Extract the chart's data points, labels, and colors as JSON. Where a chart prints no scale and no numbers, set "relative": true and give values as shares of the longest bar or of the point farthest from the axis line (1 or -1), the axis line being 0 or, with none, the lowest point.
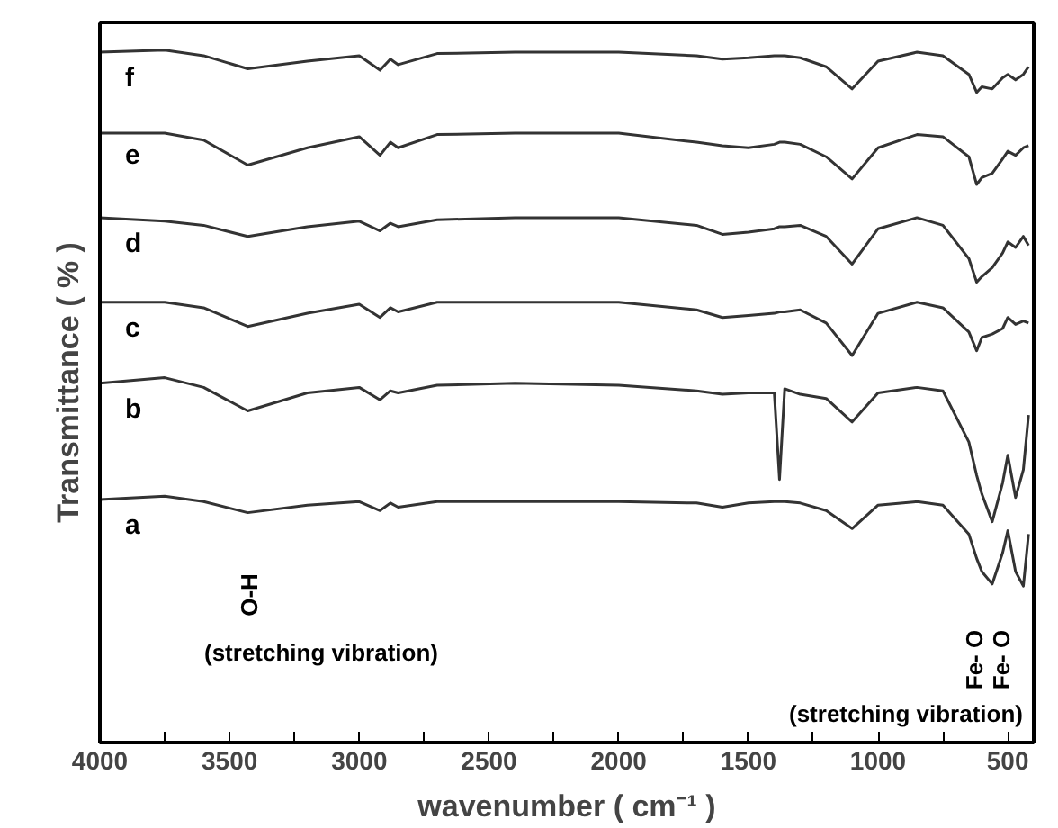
{
  "chart_data": {
    "type": "line",
    "relative": true,
    "xlabel": "wavenumber ( cm⁻¹ )",
    "ylabel": "Transmittance ( % )",
    "xlim": [
      4000,
      400
    ],
    "xticks": [
      4000,
      {
        "value": 3750,
        "label": null
      },
      3500,
      {
        "value": 3250,
        "label": null
      },
      3000,
      {
        "value": 2750,
        "label": null
      },
      2500,
      {
        "value": 2250,
        "label": null
      },
      2000,
      {
        "value": 1750,
        "label": null
      },
      1500,
      {
        "value": 1250,
        "label": null
      },
      1000,
      {
        "value": 750,
        "label": null
      },
      500
    ],
    "tick_labels": "x",
    "grid": false,
    "marker": "none",
    "line_style": "solid",
    "x": [
      4000,
      3750,
      3600,
      3430,
      3200,
      3000,
      2920,
      2880,
      2850,
      2700,
      2400,
      2000,
      1700,
      1600,
      1500,
      1400,
      1380,
      1360,
      1300,
      1200,
      1100,
      1000,
      850,
      750,
      650,
      620,
      600,
      560,
      520,
      500,
      470,
      440,
      420
    ],
    "series": [
      {
        "name": "f",
        "color": "#333333",
        "values": [
          0.997,
          1.0,
          0.992,
          0.973,
          0.984,
          0.992,
          0.971,
          0.987,
          0.979,
          0.995,
          0.997,
          0.997,
          0.992,
          0.987,
          0.989,
          0.992,
          0.992,
          0.992,
          0.989,
          0.976,
          0.944,
          0.984,
          0.997,
          0.992,
          0.965,
          0.939,
          0.947,
          0.944,
          0.96,
          0.965,
          0.957,
          0.965,
          0.976
        ]
      },
      {
        "name": "e",
        "color": "#333333",
        "values": [
          0.88,
          0.88,
          0.87,
          0.834,
          0.859,
          0.875,
          0.848,
          0.867,
          0.859,
          0.878,
          0.88,
          0.88,
          0.867,
          0.862,
          0.859,
          0.864,
          0.867,
          0.867,
          0.864,
          0.846,
          0.814,
          0.859,
          0.878,
          0.875,
          0.846,
          0.806,
          0.816,
          0.822,
          0.843,
          0.854,
          0.848,
          0.859,
          0.862
        ]
      },
      {
        "name": "d",
        "color": "#333333",
        "values": [
          0.758,
          0.753,
          0.747,
          0.731,
          0.745,
          0.753,
          0.739,
          0.75,
          0.745,
          0.755,
          0.758,
          0.758,
          0.747,
          0.734,
          0.737,
          0.742,
          0.745,
          0.745,
          0.747,
          0.731,
          0.691,
          0.742,
          0.758,
          0.747,
          0.699,
          0.665,
          0.673,
          0.686,
          0.707,
          0.723,
          0.715,
          0.731,
          0.718
        ]
      },
      {
        "name": "c",
        "color": "#333333",
        "values": [
          0.636,
          0.636,
          0.628,
          0.601,
          0.62,
          0.633,
          0.614,
          0.628,
          0.622,
          0.636,
          0.636,
          0.636,
          0.625,
          0.614,
          0.617,
          0.62,
          0.622,
          0.622,
          0.625,
          0.606,
          0.559,
          0.62,
          0.636,
          0.628,
          0.593,
          0.566,
          0.585,
          0.59,
          0.598,
          0.614,
          0.604,
          0.609,
          0.606
        ]
      },
      {
        "name": "b",
        "color": "#333333",
        "values": [
          0.519,
          0.527,
          0.513,
          0.479,
          0.505,
          0.513,
          0.495,
          0.508,
          0.505,
          0.516,
          0.519,
          0.516,
          0.508,
          0.503,
          0.505,
          0.505,
          0.38,
          0.511,
          0.503,
          0.497,
          0.463,
          0.505,
          0.513,
          0.508,
          0.434,
          0.386,
          0.359,
          0.319,
          0.375,
          0.415,
          0.354,
          0.394,
          0.473
        ]
      },
      {
        "name": "a",
        "color": "#333333",
        "values": [
          0.351,
          0.356,
          0.348,
          0.332,
          0.343,
          0.348,
          0.335,
          0.346,
          0.34,
          0.348,
          0.348,
          0.348,
          0.346,
          0.34,
          0.346,
          0.348,
          0.348,
          0.348,
          0.346,
          0.335,
          0.309,
          0.343,
          0.348,
          0.343,
          0.301,
          0.266,
          0.247,
          0.229,
          0.274,
          0.306,
          0.247,
          0.226,
          0.301
        ]
      }
    ],
    "annotations": [
      "O-H",
      "(stretching vibration)",
      "Fe- O",
      "Fe- O",
      "(stretching vibration)"
    ]
  }
}
